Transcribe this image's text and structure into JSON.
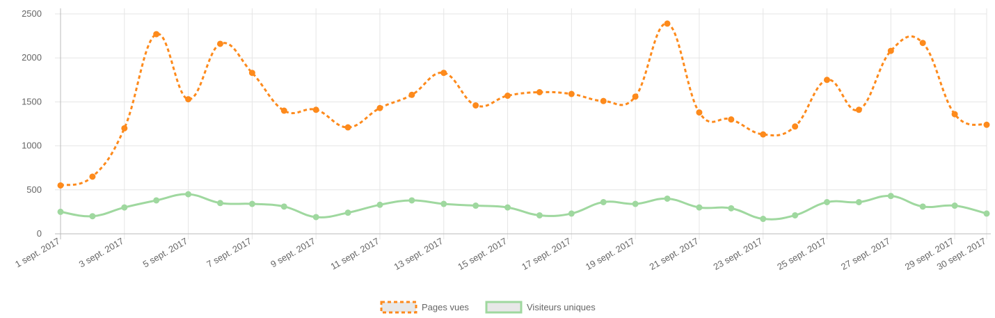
{
  "chart_data": {
    "type": "line",
    "x": [
      "1 sept. 2017",
      "2 sept. 2017",
      "3 sept. 2017",
      "4 sept. 2017",
      "5 sept. 2017",
      "6 sept. 2017",
      "7 sept. 2017",
      "8 sept. 2017",
      "9 sept. 2017",
      "10 sept. 2017",
      "11 sept. 2017",
      "12 sept. 2017",
      "13 sept. 2017",
      "14 sept. 2017",
      "15 sept. 2017",
      "16 sept. 2017",
      "17 sept. 2017",
      "18 sept. 2017",
      "19 sept. 2017",
      "20 sept. 2017",
      "21 sept. 2017",
      "22 sept. 2017",
      "23 sept. 2017",
      "24 sept. 2017",
      "25 sept. 2017",
      "26 sept. 2017",
      "27 sept. 2017",
      "28 sept. 2017",
      "29 sept. 2017",
      "30 sept. 2017"
    ],
    "x_tick_labels": [
      "1 sept. 2017",
      "3 sept. 2017",
      "5 sept. 2017",
      "7 sept. 2017",
      "9 sept. 2017",
      "11 sept. 2017",
      "13 sept. 2017",
      "15 sept. 2017",
      "17 sept. 2017",
      "19 sept. 2017",
      "21 sept. 2017",
      "23 sept. 2017",
      "25 sept. 2017",
      "27 sept. 2017",
      "29 sept. 2017",
      "30 sept. 2017"
    ],
    "y_ticks": [
      "0",
      "500",
      "1000",
      "1500",
      "2000",
      "2500"
    ],
    "ylim": [
      0,
      2500
    ],
    "grid": true,
    "legend_position": "bottom",
    "series": [
      {
        "name": "Pages vues",
        "color": "#fd8a1c",
        "style": "dashed",
        "values": [
          550,
          650,
          1200,
          2270,
          1530,
          2160,
          1830,
          1400,
          1410,
          1210,
          1430,
          1580,
          1830,
          1460,
          1570,
          1610,
          1590,
          1510,
          1560,
          2390,
          1380,
          1300,
          1130,
          1220,
          1750,
          1410,
          2080,
          2170,
          1360,
          1240
        ]
      },
      {
        "name": "Visiteurs uniques",
        "color": "#9fd89f",
        "style": "solid",
        "values": [
          250,
          200,
          300,
          380,
          450,
          350,
          340,
          310,
          190,
          240,
          330,
          380,
          340,
          320,
          300,
          210,
          230,
          360,
          340,
          400,
          300,
          290,
          170,
          210,
          360,
          360,
          430,
          310,
          320,
          230
        ]
      }
    ]
  }
}
